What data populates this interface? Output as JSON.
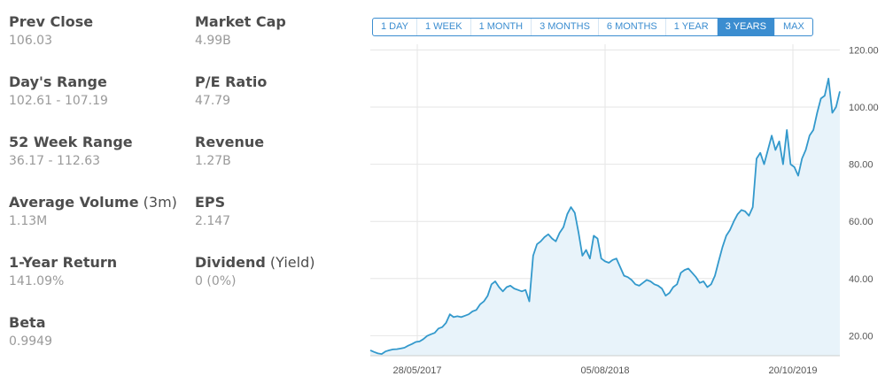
{
  "stats": [
    {
      "label": "Prev Close",
      "value": "106.03"
    },
    {
      "label": "Market Cap",
      "value": "4.99B"
    },
    {
      "label": "Day's Range",
      "value": "102.61 - 107.19"
    },
    {
      "label": "P/E Ratio",
      "value": "47.79"
    },
    {
      "label": "52 Week Range",
      "value": "36.17 - 112.63"
    },
    {
      "label": "Revenue",
      "value": "1.27B"
    },
    {
      "label": "Average Volume",
      "label_suffix": "(3m)",
      "value": "1.13M"
    },
    {
      "label": "EPS",
      "value": "2.147"
    },
    {
      "label": "1-Year Return",
      "value": "141.09%"
    },
    {
      "label": "Dividend",
      "label_suffix": "(Yield)",
      "value": "0 (0%)"
    },
    {
      "label": "Beta",
      "value": "0.9949"
    }
  ],
  "range_tabs": [
    "1 DAY",
    "1 WEEK",
    "1 MONTH",
    "3 MONTHS",
    "6 MONTHS",
    "1 YEAR",
    "3 YEARS",
    "MAX"
  ],
  "active_tab": "3 YEARS",
  "colors": {
    "line": "#3399cc",
    "fill": "#e8f3fa",
    "accent": "#3b8dd0",
    "grid": "#e6e6e6"
  },
  "chart_data": {
    "type": "area",
    "ylim": [
      13,
      122
    ],
    "y_ticks": [
      "20.00",
      "40.00",
      "60.00",
      "80.00",
      "100.00",
      "120.00"
    ],
    "x_tick_labels": [
      "28/05/2017",
      "05/08/2018",
      "20/10/2019"
    ],
    "grid": true,
    "series": [
      {
        "values": [
          14.9,
          14.3,
          13.8,
          13.6,
          14.5,
          14.9,
          15.2,
          15.3,
          15.5,
          15.8,
          16.5,
          17.1,
          17.8,
          18.0,
          18.8,
          19.9,
          20.5,
          21.0,
          22.5,
          23.0,
          24.5,
          27.5,
          26.5,
          26.8,
          26.5,
          27.0,
          27.5,
          28.5,
          29.0,
          31.0,
          32.0,
          34.0,
          38.0,
          39.0,
          37.0,
          35.5,
          37.0,
          37.5,
          36.5,
          36.0,
          35.5,
          36.0,
          32.0,
          48.0,
          52.0,
          53.0,
          54.5,
          55.5,
          54.0,
          53.0,
          56.0,
          58.0,
          62.5,
          65.0,
          63.0,
          56.0,
          48.0,
          50.0,
          47.0,
          55.0,
          54.0,
          47.0,
          46.0,
          45.5,
          46.5,
          47.0,
          44.0,
          41.0,
          40.5,
          39.5,
          38.0,
          37.5,
          38.5,
          39.5,
          39.0,
          38.0,
          37.5,
          36.5,
          34.0,
          35.0,
          37.0,
          38.0,
          42.0,
          43.0,
          43.5,
          42.0,
          40.5,
          38.5,
          39.0,
          37.0,
          38.0,
          41.0,
          46.0,
          51.0,
          55.0,
          57.0,
          60.0,
          62.5,
          64.0,
          63.5,
          62.0,
          65.0,
          82.0,
          84.0,
          80.0,
          85.0,
          90.0,
          85.0,
          88.0,
          80.0,
          92.0,
          80.0,
          79.0,
          76.0,
          82.0,
          85.0,
          90.0,
          92.0,
          98.0,
          103.0,
          104.0,
          110.0,
          98.0,
          100.0,
          105.5
        ]
      }
    ]
  }
}
